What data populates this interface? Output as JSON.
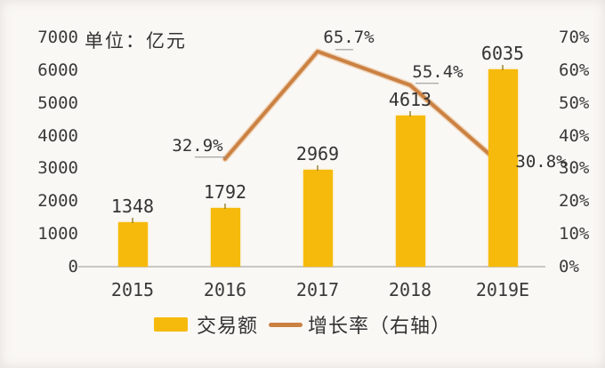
{
  "chart_data": {
    "type": "bar",
    "title": "",
    "unit_label": "单位：亿元",
    "categories": [
      "2015",
      "2016",
      "2017",
      "2018",
      "2019E"
    ],
    "series": [
      {
        "name": "交易额",
        "type": "bar",
        "axis": "left",
        "values": [
          1348,
          1792,
          2969,
          4613,
          6035
        ],
        "value_labels": [
          "1348",
          "1792",
          "2969",
          "4613",
          "6035"
        ],
        "color": "#F6BA0C"
      },
      {
        "name": "增长率（右轴）",
        "type": "line",
        "axis": "right",
        "categories": [
          "2016",
          "2017",
          "2018",
          "2019E"
        ],
        "values": [
          32.9,
          65.7,
          55.4,
          30.8
        ],
        "value_labels": [
          "32.9%",
          "65.7%",
          "55.4%",
          "30.8%"
        ],
        "color": "#CB8142"
      }
    ],
    "left_axis": {
      "min": 0,
      "max": 7000,
      "step": 1000,
      "tick_labels": [
        "0",
        "1000",
        "2000",
        "3000",
        "4000",
        "5000",
        "6000",
        "7000"
      ]
    },
    "right_axis": {
      "min": 0,
      "max": 70,
      "step": 10,
      "tick_labels": [
        "0%",
        "10%",
        "20%",
        "30%",
        "40%",
        "50%",
        "60%",
        "70%"
      ]
    },
    "grid": false,
    "legend_position": "bottom",
    "legend": {
      "bar_label": "交易额",
      "line_label": "增长率（右轴）"
    }
  },
  "colors": {
    "bar": "#F6BA0C",
    "line": "#CB8142",
    "line_halo": "#E2A96F",
    "text": "#333333",
    "axis_line": "#C9C7C3",
    "leader_line": "#8f8f8f",
    "background": "#FAF8F5"
  }
}
